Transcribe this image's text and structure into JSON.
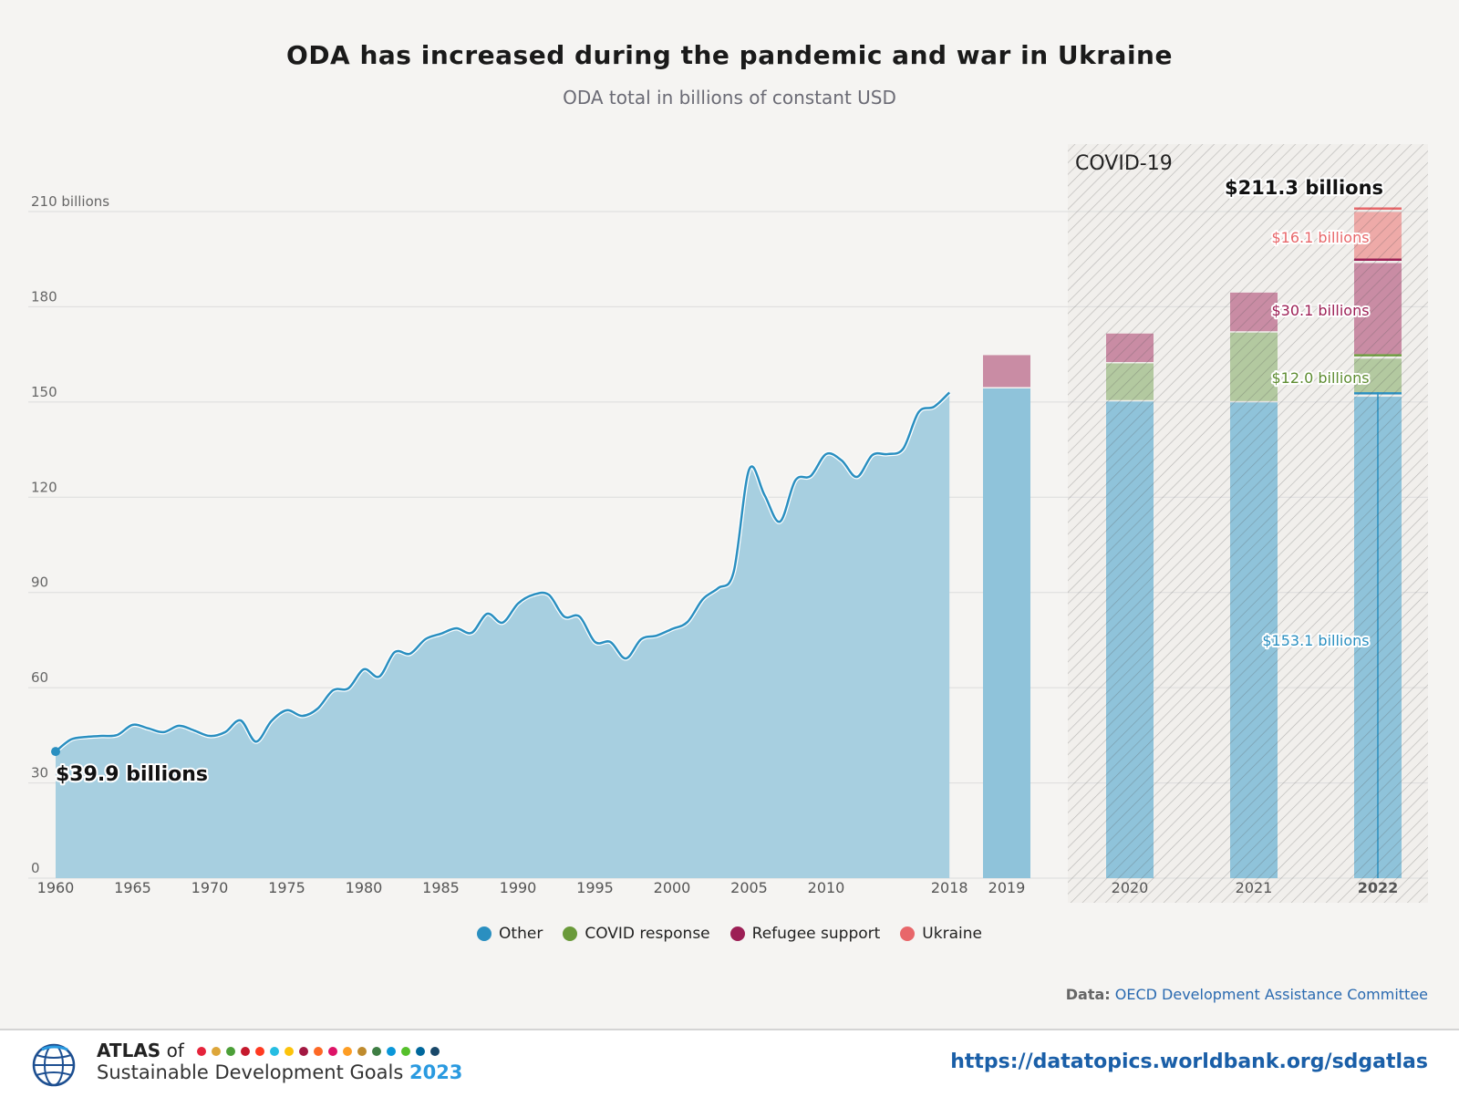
{
  "colors": {
    "other": "#2a8fc0",
    "other_fill": "#a7cfe0",
    "other_bar": "#8fc3da",
    "covid": "#6a9a3a",
    "covid_fill": "#b3c9a0",
    "refugee": "#9c1f55",
    "refugee_fill": "#c98ca4",
    "ukraine": "#e8676a",
    "ukraine_fill": "#eeaaa8",
    "background": "#f5f4f2"
  },
  "chart_data": {
    "type": "area",
    "title": "ODA has increased during the pandemic and war in Ukraine",
    "subtitle": "ODA total in billions of constant USD",
    "ylim": [
      0,
      210
    ],
    "yticks": [
      0,
      30,
      60,
      90,
      120,
      150,
      180,
      210
    ],
    "ytick_labels": [
      "0",
      "30",
      "60",
      "90",
      "120",
      "150",
      "180",
      "210 billions"
    ],
    "grid": true,
    "xtick_labels": [
      "1960",
      "1965",
      "1970",
      "1975",
      "1980",
      "1985",
      "1990",
      "1995",
      "2000",
      "2005",
      "2010",
      "2018"
    ],
    "line": {
      "name": "Other",
      "x": [
        1960,
        1961,
        1962,
        1963,
        1964,
        1965,
        1966,
        1967,
        1968,
        1969,
        1970,
        1971,
        1972,
        1973,
        1974,
        1975,
        1976,
        1977,
        1978,
        1979,
        1980,
        1981,
        1982,
        1983,
        1984,
        1985,
        1986,
        1987,
        1988,
        1989,
        1990,
        1991,
        1992,
        1993,
        1994,
        1995,
        1996,
        1997,
        1998,
        1999,
        2000,
        2001,
        2002,
        2003,
        2004,
        2005,
        2006,
        2007,
        2008,
        2009,
        2010,
        2011,
        2012,
        2013,
        2014,
        2015,
        2016,
        2017,
        2018
      ],
      "y": [
        39.9,
        43.7,
        44.5,
        44.8,
        45.1,
        48.3,
        47.2,
        46.0,
        48.0,
        46.5,
        44.8,
        46.0,
        49.7,
        43.0,
        49.5,
        52.9,
        51.1,
        53.4,
        59.2,
        59.8,
        65.8,
        63.5,
        71.2,
        70.7,
        75.3,
        77.0,
        78.7,
        77.3,
        83.3,
        80.5,
        86.5,
        89.3,
        89.3,
        82.4,
        82.4,
        74.4,
        74.4,
        69.2,
        75.3,
        76.4,
        78.5,
        80.7,
        87.9,
        91.4,
        96.5,
        128.7,
        120.7,
        112.3,
        125.3,
        126.7,
        133.6,
        131.6,
        126.4,
        133.3,
        133.6,
        135.3,
        146.8,
        148.5,
        153.0
      ]
    },
    "bars": {
      "type": "stacked-bar",
      "categories": [
        "2019",
        "2020",
        "2021",
        "2022"
      ],
      "series": [
        {
          "name": "Other",
          "values": [
            154.7,
            150.6,
            150.3,
            153.1
          ]
        },
        {
          "name": "COVID response",
          "values": [
            0,
            12.0,
            22.0,
            12.0
          ]
        },
        {
          "name": "Refugee support",
          "values": [
            10.5,
            9.4,
            12.6,
            30.1
          ]
        },
        {
          "name": "Ukraine",
          "values": [
            0,
            0,
            0,
            16.1
          ]
        }
      ]
    },
    "highlight_region": {
      "label": "COVID-19",
      "from": "2020",
      "to": "2022"
    },
    "annotations": {
      "start": "$39.9 billions",
      "total_2022": "$211.3 billions",
      "ukraine_2022": "$16.1 billions",
      "refugee_2022": "$30.1 billions",
      "covid_2022": "$12.0 billions",
      "other_2022": "$153.1 billions"
    },
    "legend": [
      "Other",
      "COVID response",
      "Refugee support",
      "Ukraine"
    ],
    "legend_position": "bottom"
  },
  "source": {
    "label": "Data:",
    "text": "OECD Development Assistance Committee"
  },
  "footer": {
    "atlas": "ATLAS",
    "of": "of",
    "line2": "Sustainable Development Goals",
    "year": "2023",
    "url": "https://datatopics.worldbank.org/sdgatlas",
    "sdg_colors": [
      "#e5243b",
      "#dda63a",
      "#4c9f38",
      "#c5192d",
      "#ff3a21",
      "#26bde2",
      "#fcc30b",
      "#a21942",
      "#fd6925",
      "#dd1367",
      "#fd9d24",
      "#bf8b2e",
      "#3f7e44",
      "#0a97d9",
      "#56c02b",
      "#00689d",
      "#19486a"
    ]
  }
}
